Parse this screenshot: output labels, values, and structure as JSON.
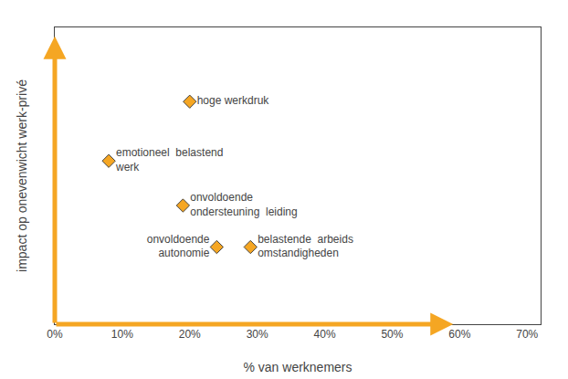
{
  "chart_data": {
    "type": "scatter",
    "x_label": "% van werknemers",
    "y_label": "impact op onevenwicht werk-privé",
    "x": [
      20,
      8,
      19,
      24,
      29
    ],
    "values": [
      75,
      55,
      40,
      26,
      26
    ],
    "labels": [
      "hoge werkdruk",
      "emotioneel  belastend\nwerk",
      "onvoldoende\nondersteuning  leiding",
      "onvoldoende\nautonomie",
      "belastende  arbeids\nomstandigheden"
    ],
    "color": "#f5a623",
    "marker": "diamond",
    "xlim": [
      0,
      72
    ],
    "ylim": [
      0,
      100
    ],
    "xticks": [
      {
        "value": 0,
        "label": "0%"
      },
      {
        "value": 10,
        "label": "10%"
      },
      {
        "value": 20,
        "label": "20%"
      },
      {
        "value": 30,
        "label": "30%"
      },
      {
        "value": 40,
        "label": "40%"
      },
      {
        "value": 50,
        "label": "50%"
      },
      {
        "value": 60,
        "label": "60%"
      },
      {
        "value": 70,
        "label": "70%"
      }
    ],
    "yticks": [],
    "grid": false,
    "tick_labels": "x"
  }
}
